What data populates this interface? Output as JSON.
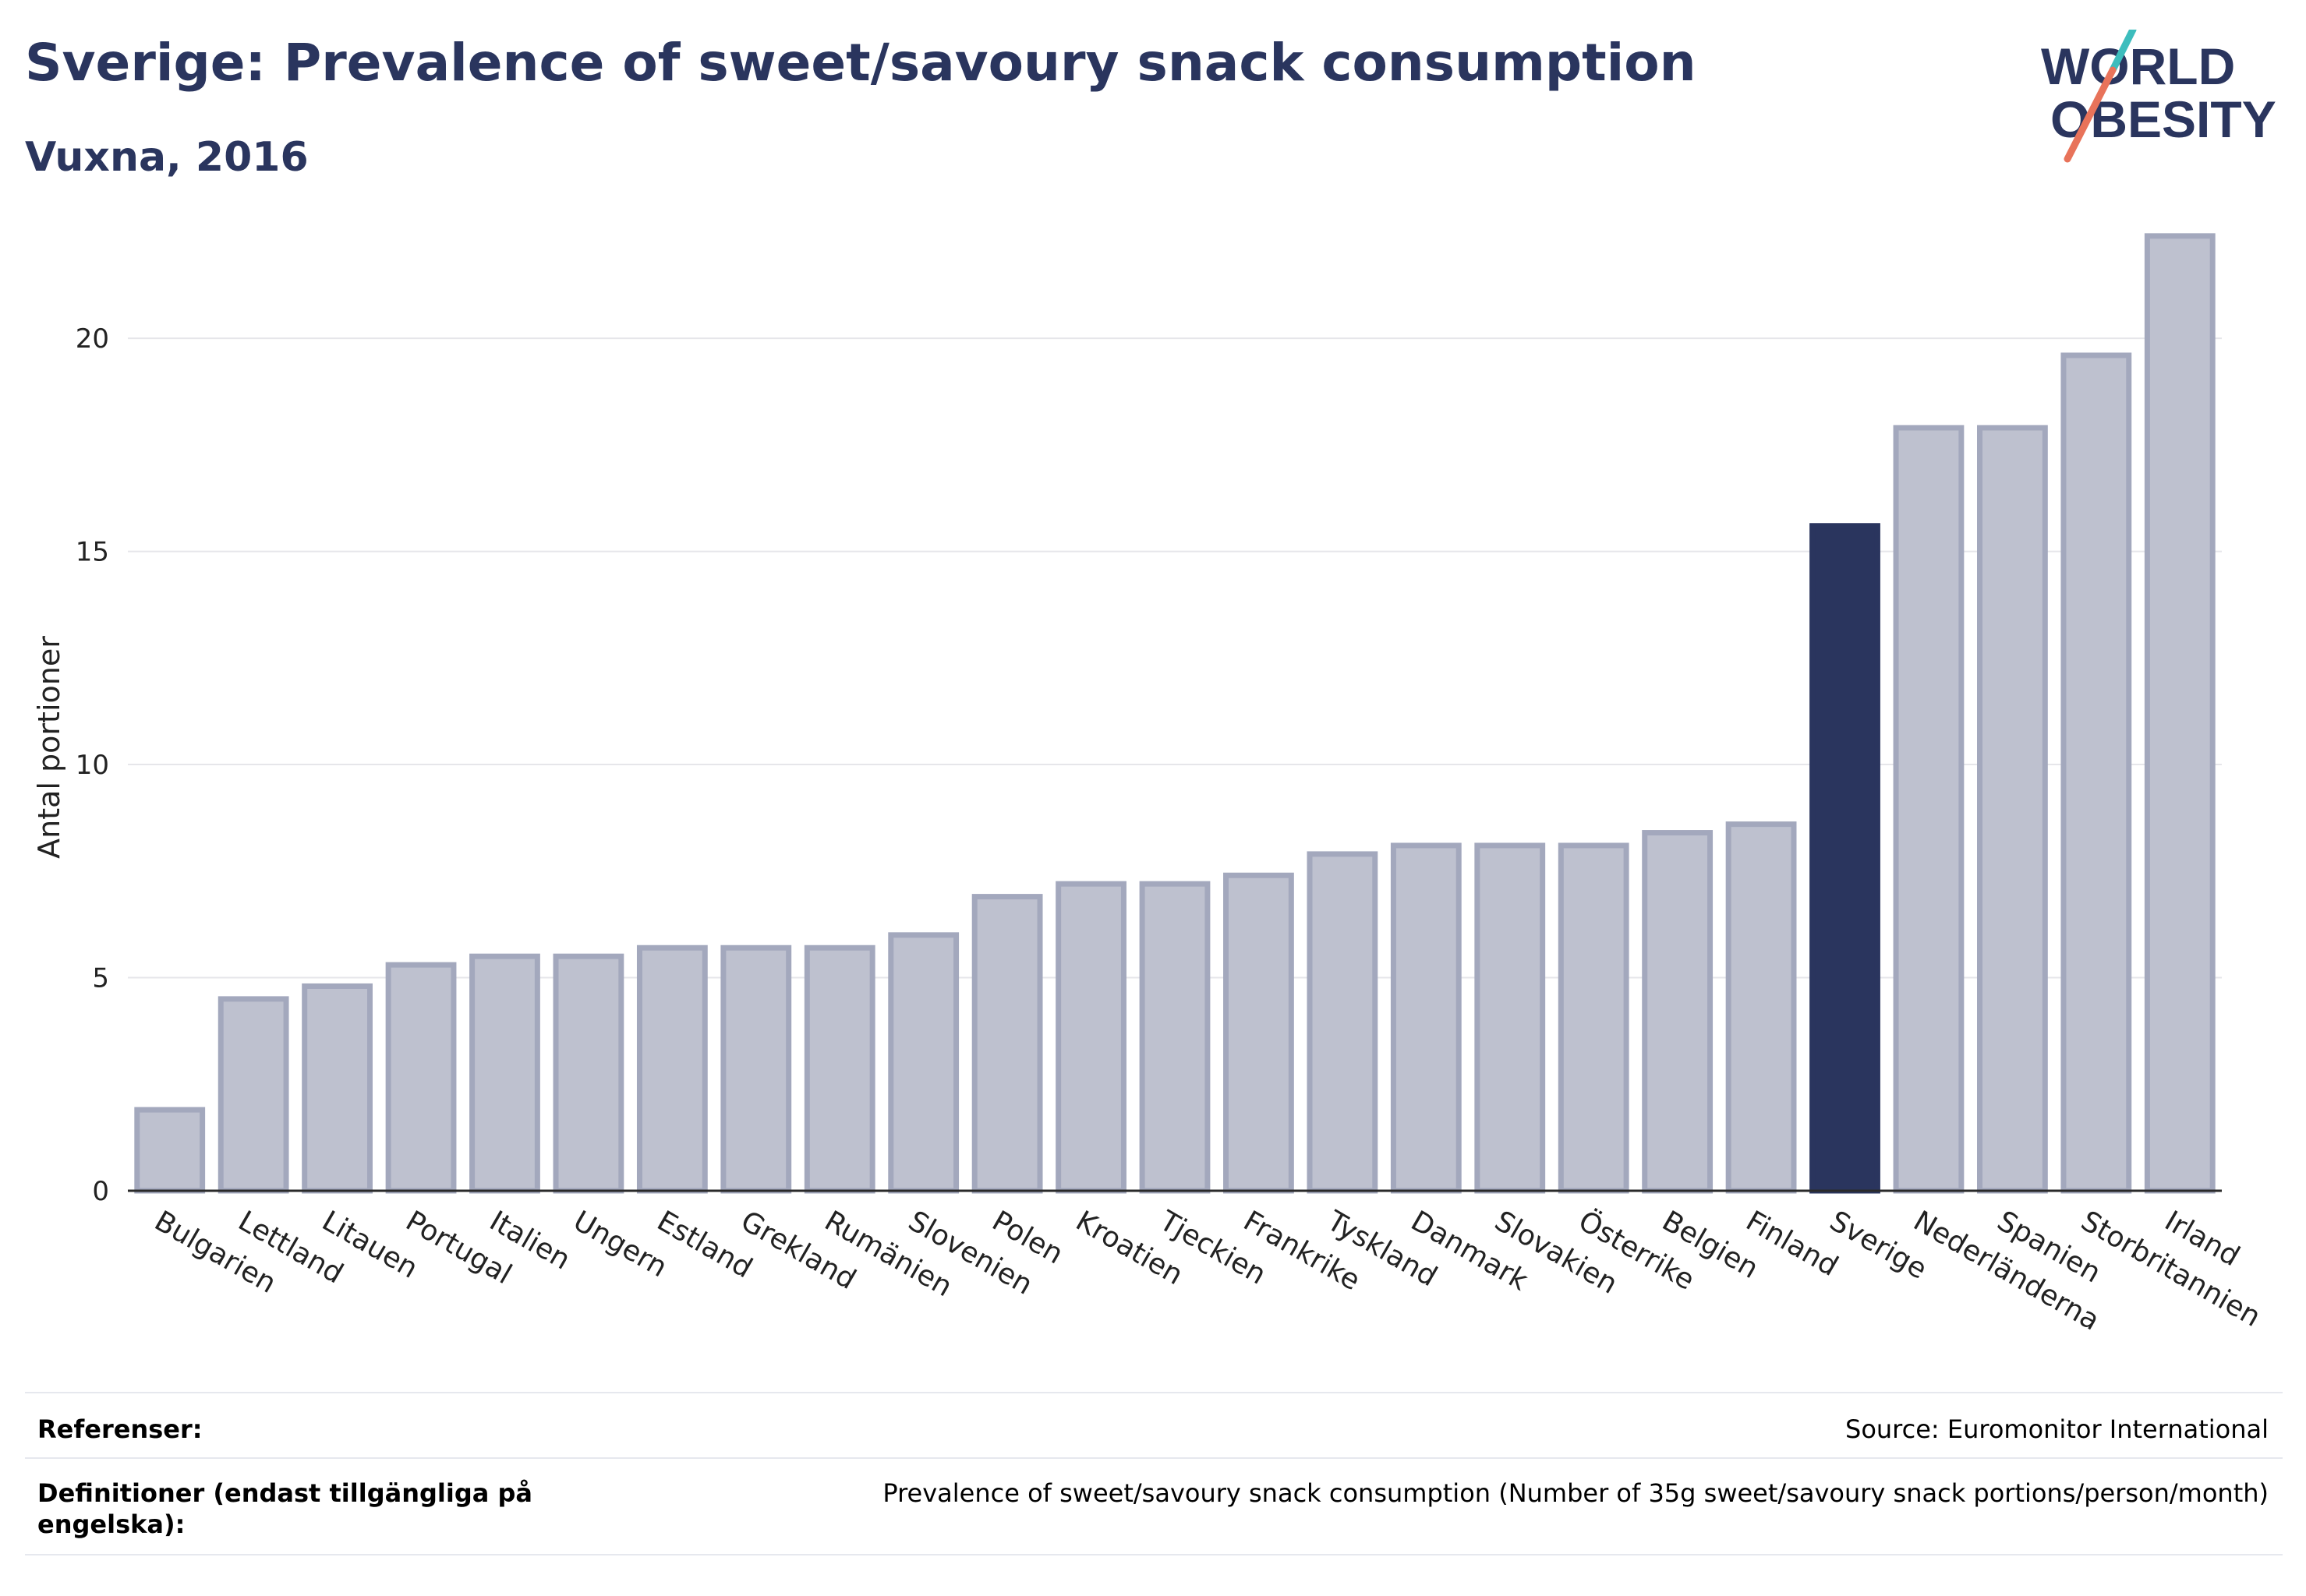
{
  "header": {
    "title": "Sverige: Prevalence of sweet/savoury snack consumption",
    "subtitle": "Vuxna, 2016"
  },
  "logo": {
    "line1": "WORLD",
    "line2": "OBESITY",
    "accent_teal": "#3dbdbd",
    "accent_red": "#e8735a",
    "text_color": "#2a355e"
  },
  "colors": {
    "bar_fill": "#bec1cf",
    "bar_stroke": "#a3a8bd",
    "highlight_fill": "#2a355e",
    "axis": "#2a2a2a",
    "grid": "#e6e6ea"
  },
  "chart_data": {
    "type": "bar",
    "ylabel": "Antal portioner",
    "xlabel": "",
    "ylim": [
      0,
      23
    ],
    "yticks": [
      0,
      5,
      10,
      15,
      20
    ],
    "grid": true,
    "highlight": "Sverige",
    "categories": [
      "Bulgarien",
      "Lettland",
      "Litauen",
      "Portugal",
      "Italien",
      "Ungern",
      "Estland",
      "Grekland",
      "Rumänien",
      "Slovenien",
      "Polen",
      "Kroatien",
      "Tjeckien",
      "Frankrike",
      "Tyskland",
      "Danmark",
      "Slovakien",
      "Österrike",
      "Belgien",
      "Finland",
      "Sverige",
      "Nederländerna",
      "Spanien",
      "Storbritannien",
      "Irland"
    ],
    "values": [
      1.9,
      4.5,
      4.8,
      5.3,
      5.5,
      5.5,
      5.7,
      5.7,
      5.7,
      6.0,
      6.9,
      7.2,
      7.2,
      7.4,
      7.9,
      8.1,
      8.1,
      8.1,
      8.4,
      8.6,
      15.6,
      17.9,
      17.9,
      19.6,
      22.4
    ]
  },
  "footer": {
    "references_label": "Referenser:",
    "references_value": "Source: Euromonitor International",
    "definitions_label": "Definitioner (endast tillgängliga på engelska):",
    "definitions_value": "Prevalence of sweet/savoury snack consumption (Number of 35g sweet/savoury snack portions/person/month)"
  }
}
